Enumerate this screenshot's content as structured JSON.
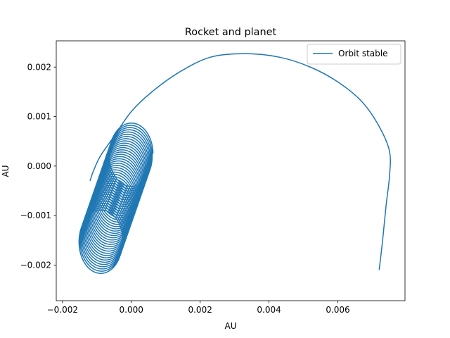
{
  "chart_data": {
    "type": "line",
    "title": "Rocket and planet",
    "xlabel": "AU",
    "ylabel": "AU",
    "xlim": [
      -0.00218,
      0.00795
    ],
    "ylim": [
      -0.00272,
      0.00253
    ],
    "x_ticks": [
      -0.002,
      0.0,
      0.002,
      0.004,
      0.006
    ],
    "x_tick_labels": [
      "−0.002",
      "0.000",
      "0.002",
      "0.004",
      "0.006"
    ],
    "y_ticks": [
      -0.002,
      -0.001,
      0.0,
      0.001,
      0.002
    ],
    "y_tick_labels": [
      "−0.002",
      "−0.001",
      "0.000",
      "0.001",
      "0.002"
    ],
    "grid": false,
    "legend": {
      "location": "upper right",
      "entries": [
        "Orbit stable"
      ]
    },
    "series": [
      {
        "name": "Orbit stable",
        "color": "#1f77b4",
        "outer_arc": {
          "x": [
            0.0072,
            0.0073,
            0.0074,
            0.0075,
            0.0075,
            0.0072,
            0.0067,
            0.006,
            0.0052,
            0.0043,
            0.0033,
            0.0023,
            0.0014,
            0.0006,
            0.0,
            -0.0005,
            -0.0009,
            -0.0011,
            -0.0012
          ],
          "y": [
            -0.0021,
            -0.0015,
            -0.0008,
            -0.0002,
            0.0003,
            0.0008,
            0.0013,
            0.0017,
            0.002,
            0.0022,
            0.00227,
            0.0022,
            0.0019,
            0.0015,
            0.0011,
            0.0006,
            0.0002,
            -0.0001,
            -0.0003
          ]
        },
        "loops": {
          "count": 40,
          "first_center": [
            0.0,
            0.00025
          ],
          "last_center": [
            -0.0009,
            -0.00155
          ],
          "radius_x": 0.00063,
          "radius_y": 0.00063
        }
      }
    ]
  }
}
